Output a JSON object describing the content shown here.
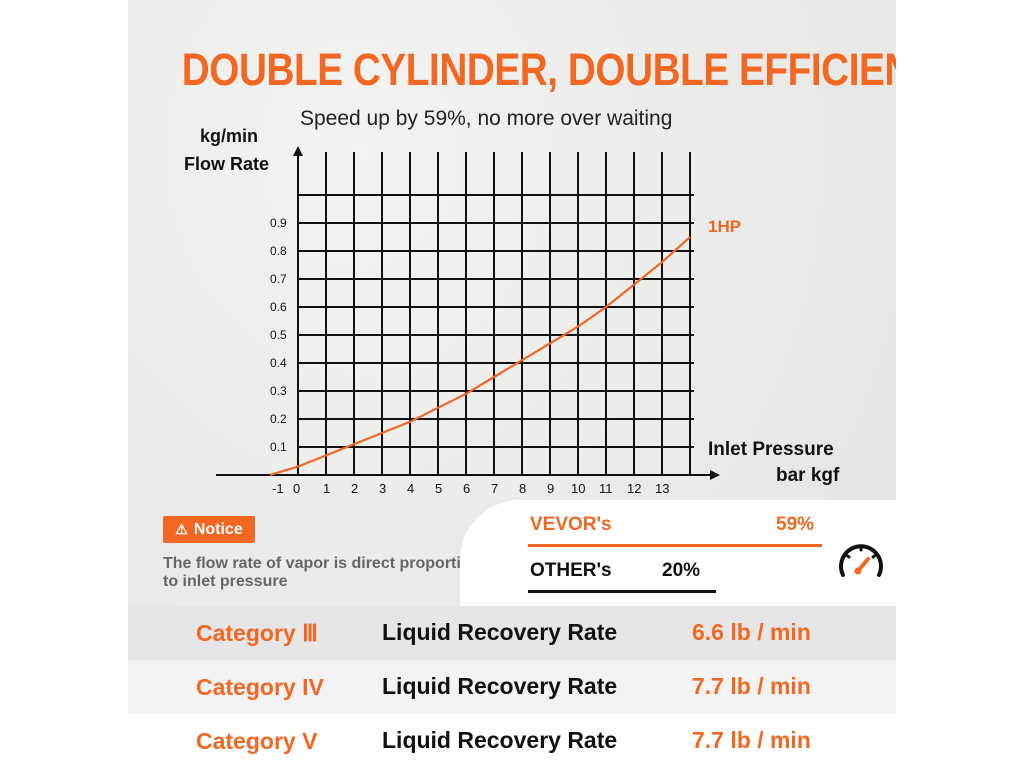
{
  "header": {
    "title": "DOUBLE CYLINDER, DOUBLE EFFICIENCY",
    "subtitle": "Speed up by 59%, no more over waiting"
  },
  "chart_data": {
    "type": "line",
    "title": "DOUBLE CYLINDER, DOUBLE EFFICIENCY",
    "subtitle": "Speed up by 59%, no more over waiting",
    "ylabel": [
      "kg/min",
      "Flow Rate"
    ],
    "xlabel": [
      "Inlet Pressure",
      "bar kgf"
    ],
    "xlim": [
      -1,
      13
    ],
    "ylim": [
      0,
      0.9
    ],
    "x_ticks": [
      "-1",
      "0",
      "1",
      "2",
      "3",
      "4",
      "5",
      "6",
      "7",
      "8",
      "9",
      "10",
      "11",
      "12",
      "13"
    ],
    "y_ticks": [
      "0.1",
      "0.2",
      "0.3",
      "0.4",
      "0.5",
      "0.6",
      "0.7",
      "0.8",
      "0.9"
    ],
    "grid": true,
    "series": [
      {
        "name": "1HP",
        "color": "#f26722",
        "x": [
          -1,
          0,
          1,
          2,
          3,
          4,
          5,
          6,
          7,
          8,
          9,
          10,
          11,
          12,
          13,
          14
        ],
        "y": [
          0,
          0.03,
          0.07,
          0.11,
          0.15,
          0.19,
          0.24,
          0.29,
          0.35,
          0.41,
          0.47,
          0.53,
          0.6,
          0.68,
          0.76,
          0.85
        ]
      }
    ]
  },
  "notice": {
    "badge": "Notice",
    "text": "The flow rate of vapor is direct proportion to inlet pressure"
  },
  "comparison": {
    "vevor_label": "VEVOR's",
    "vevor_value": "59%",
    "other_label": "OTHER's",
    "other_value": "20%",
    "icon": "speedometer-icon"
  },
  "table": {
    "rows": [
      {
        "category": "Category Ⅲ",
        "metric": "Liquid Recovery Rate",
        "value": "6.6 lb / min"
      },
      {
        "category": "Category IV",
        "metric": "Liquid Recovery Rate",
        "value": "7.7 lb / min"
      },
      {
        "category": "Category V",
        "metric": "Liquid Recovery Rate",
        "value": "7.7 lb / min"
      }
    ]
  },
  "colors": {
    "accent": "#f26722",
    "text": "#111111",
    "row_shaded": "#e6e6e6",
    "row_light": "#f3f3f3",
    "row_white": "#ffffff"
  }
}
